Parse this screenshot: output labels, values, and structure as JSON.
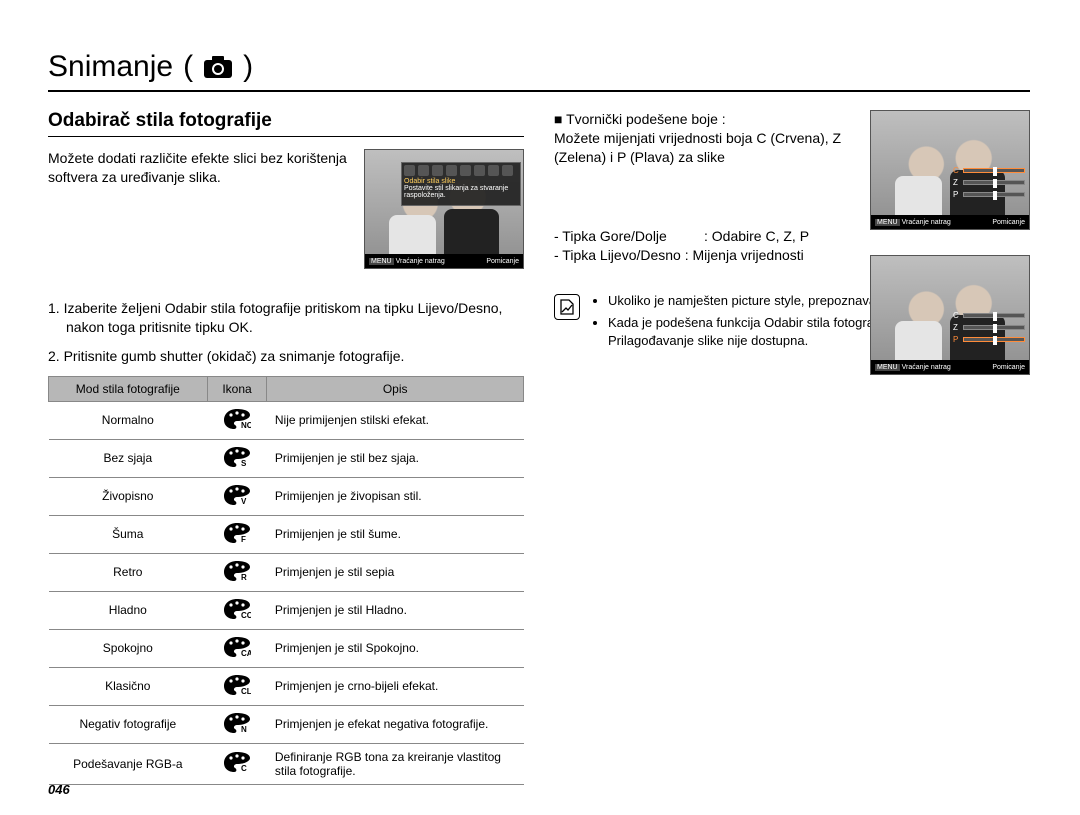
{
  "page": {
    "title": "Snimanje",
    "page_number": "046"
  },
  "left": {
    "subheading": "Odabirač stila fotografije",
    "intro": "Možete dodati različite efekte slici bez korištenja softvera za uređivanje slika.",
    "step1": "1. Izaberite željeni Odabir stila fotografije pritiskom na tipku Lijevo/Desno, nakon toga pritisnite tipku OK.",
    "step2": "2. Pritisnite gumb shutter (okidač) za snimanje fotografije.",
    "table": {
      "headers": {
        "mode": "Mod stila fotografije",
        "icon": "Ikona",
        "desc": "Opis"
      },
      "rows": [
        {
          "mode": "Normalno",
          "icon": "NOR",
          "desc": "Nije primijenjen stilski efekat."
        },
        {
          "mode": "Bez sjaja",
          "icon": "S",
          "desc": "Primijenjen je stil bez sjaja."
        },
        {
          "mode": "Živopisno",
          "icon": "V",
          "desc": "Primijenjen je živopisan stil."
        },
        {
          "mode": "Šuma",
          "icon": "F",
          "desc": "Primijenjen je stil šume."
        },
        {
          "mode": "Retro",
          "icon": "R",
          "desc": "Primjenjen je stil sepia"
        },
        {
          "mode": "Hladno",
          "icon": "CO",
          "desc": "Primjenjen je stil Hladno."
        },
        {
          "mode": "Spokojno",
          "icon": "CA",
          "desc": "Primjenjen je stil Spokojno."
        },
        {
          "mode": "Klasično",
          "icon": "CL",
          "desc": "Primjenjen je crno-bijeli efekat."
        },
        {
          "mode": "Negativ fotografije",
          "icon": "N",
          "desc": "Primjenjen je efekat negativa fotografije."
        },
        {
          "mode": "Podešavanje RGB-a",
          "icon": "C",
          "desc": "Definiranje RGB tona za kreiranje vlastitog stila fotografije."
        }
      ]
    },
    "screenshot": {
      "menu_title": "Odabir stila slike",
      "menu_sub": "Postavite stil slikanja za stvaranje raspoloženja.",
      "foot_left": "Vraćanje natrag",
      "foot_right": "Pomicanje"
    }
  },
  "right": {
    "block1_title": "Tvornički podešene boje :",
    "block1_body": "Možete mijenjati vrijednosti boja C (Crvena), Z (Zelena) i P (Plava) za slike",
    "key1_l": "- Tipka Gore/Dolje",
    "key1_r": ": Odabire C, Z, P",
    "key2": "- Tipka Lijevo/Desno : Mijenja vrijednosti",
    "sliders": {
      "c": "C",
      "z": "Z",
      "p": "P"
    },
    "shot_foot_left": "Vraćanje natrag",
    "shot_foot_right": "Pomicanje",
    "note1": "Ukoliko je namješten picture style, prepoznavanje lica nije dostupno",
    "note2": "Kada je podešena funkcija Odabir stila fotografije, funkcija Prilagođavanje slike nije dostupna."
  }
}
